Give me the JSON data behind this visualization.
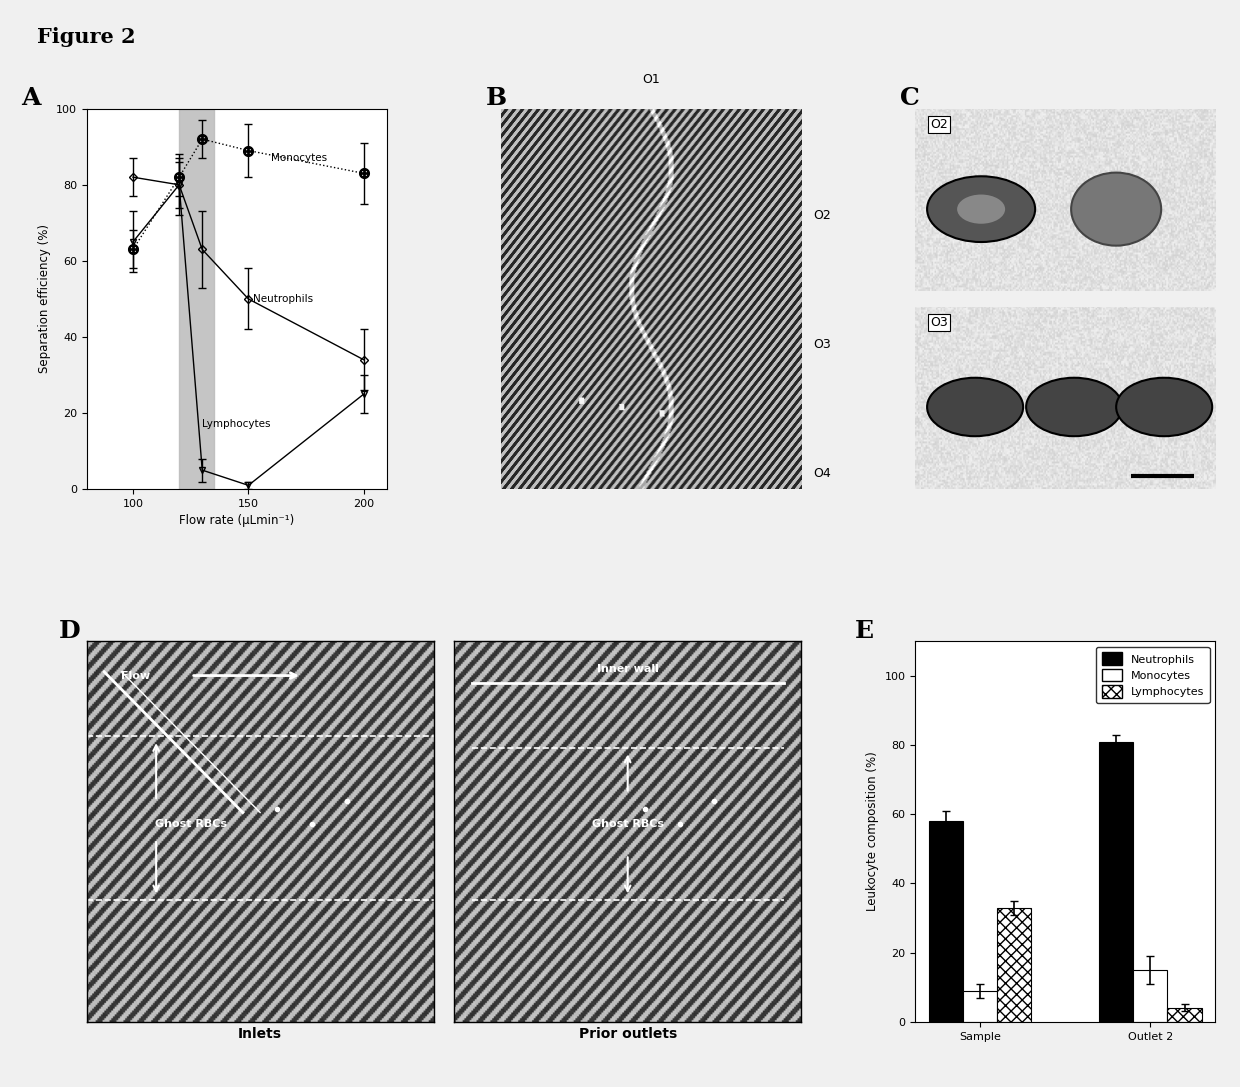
{
  "figure_title": "Figure 2",
  "panel_A": {
    "xlabel": "Flow rate (μLmin⁻¹)",
    "ylabel": "Separation efficiency (%)",
    "xlim": [
      80,
      210
    ],
    "ylim": [
      0,
      100
    ],
    "xticks": [
      100,
      150,
      200
    ],
    "yticks": [
      0,
      20,
      40,
      60,
      80,
      100
    ],
    "shaded_region": [
      120,
      135
    ],
    "monocytes": {
      "x": [
        100,
        120,
        130,
        150,
        200
      ],
      "y": [
        63,
        82,
        92,
        89,
        83
      ],
      "yerr": [
        5,
        5,
        5,
        7,
        8
      ],
      "label": "Monocytes"
    },
    "neutrophils": {
      "x": [
        100,
        120,
        130,
        150,
        200
      ],
      "y": [
        82,
        80,
        63,
        50,
        34
      ],
      "yerr": [
        5,
        6,
        10,
        8,
        8
      ],
      "label": "Neutrophils"
    },
    "lymphocytes": {
      "x": [
        100,
        120,
        130,
        150,
        200
      ],
      "y": [
        65,
        80,
        5,
        1,
        25
      ],
      "yerr": [
        8,
        8,
        3,
        1,
        5
      ],
      "label": "Lymphocytes"
    }
  },
  "panel_B": {
    "outlet_labels": [
      [
        "O1",
        1.04
      ],
      [
        "O2",
        0.72
      ],
      [
        "O3",
        0.38
      ],
      [
        "O4",
        0.04
      ]
    ]
  },
  "panel_E": {
    "ylabel": "Leukocyte composition (%)",
    "ylim": [
      0,
      110
    ],
    "yticks": [
      0,
      20,
      40,
      60,
      80,
      100
    ],
    "groups": [
      "Sample",
      "Outlet 2"
    ],
    "neutrophils": {
      "sample": 58,
      "sample_err": 3,
      "outlet2": 81,
      "outlet2_err": 2,
      "label": "Neutrophils"
    },
    "monocytes": {
      "sample": 9,
      "sample_err": 2,
      "outlet2": 15,
      "outlet2_err": 4,
      "label": "Monocytes"
    },
    "lymphocytes": {
      "sample": 33,
      "sample_err": 2,
      "outlet2": 4,
      "outlet2_err": 1,
      "label": "Lymphocytes"
    }
  },
  "bg_color": "#f0f0f0",
  "hatch_color_dark": "#1a1a1a",
  "hatch_color_light": "#888888"
}
